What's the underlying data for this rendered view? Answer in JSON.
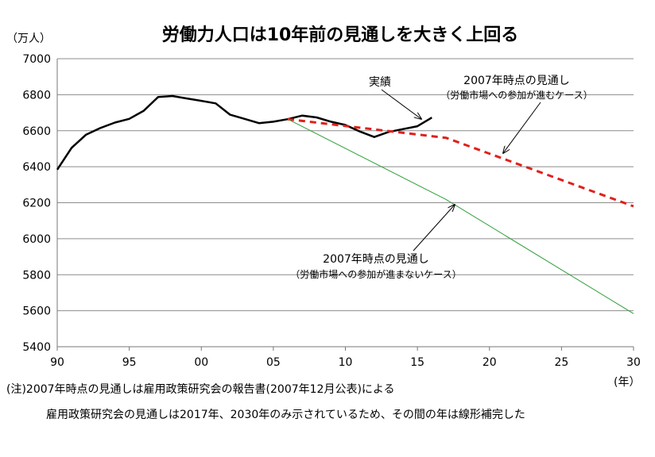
{
  "chart_data": {
    "type": "line",
    "title": "労働力人口は10年前の見通しを大きく上回る",
    "y_unit": "（万人）",
    "x_unit": "(年）",
    "xlim": [
      1990,
      2030
    ],
    "ylim": [
      5400,
      7000
    ],
    "y_ticks": [
      5400,
      5600,
      5800,
      6000,
      6200,
      6400,
      6600,
      6800,
      7000
    ],
    "x_ticks": [
      {
        "value": 1990,
        "label": "90"
      },
      {
        "value": 1995,
        "label": "95"
      },
      {
        "value": 2000,
        "label": "00"
      },
      {
        "value": 2005,
        "label": "05"
      },
      {
        "value": 2010,
        "label": "10"
      },
      {
        "value": 2015,
        "label": "15"
      },
      {
        "value": 2020,
        "label": "20"
      },
      {
        "value": 2025,
        "label": "25"
      },
      {
        "value": 2030,
        "label": "30"
      }
    ],
    "grid": "horizontal",
    "series": [
      {
        "name": "実績",
        "color": "#000000",
        "style": "solid",
        "x": [
          1990,
          1991,
          1992,
          1993,
          1994,
          1995,
          1996,
          1997,
          1998,
          1999,
          2000,
          2001,
          2002,
          2003,
          2004,
          2005,
          2006,
          2007,
          2008,
          2009,
          2010,
          2011,
          2012,
          2013,
          2014,
          2015,
          2016
        ],
        "y": [
          6384,
          6505,
          6578,
          6615,
          6645,
          6666,
          6711,
          6787,
          6793,
          6779,
          6766,
          6752,
          6689,
          6666,
          6642,
          6650,
          6664,
          6684,
          6674,
          6650,
          6632,
          6596,
          6565,
          6593,
          6609,
          6625,
          6673
        ]
      },
      {
        "name": "2007年時点の見通し（労働市場への参加が進むケース）",
        "color": "#e0201b",
        "style": "dashed",
        "x": [
          2006,
          2017,
          2030
        ],
        "y": [
          6664,
          6560,
          6180
        ]
      },
      {
        "name": "2007年時点の見通し（労働市場への参加が進まないケース）",
        "color": "#2e9e3a",
        "style": "solid-thin",
        "x": [
          2006,
          2017,
          2030
        ],
        "y": [
          6664,
          6217,
          5584
        ]
      }
    ],
    "annotations": {
      "actual": "実績",
      "proj_up_line1": "2007年時点の見通し",
      "proj_up_line2": "（労働市場への参加が進むケース）",
      "proj_down_line1": "2007年時点の見通し",
      "proj_down_line2": "（労働市場への参加が進まないケース）"
    },
    "notes": [
      "(注)2007年時点の見通しは雇用政策研究会の報告書(2007年12月公表)による",
      "雇用政策研究会の見通しは2017年、2030年のみ示されているため、その間の年は線形補完した"
    ]
  }
}
